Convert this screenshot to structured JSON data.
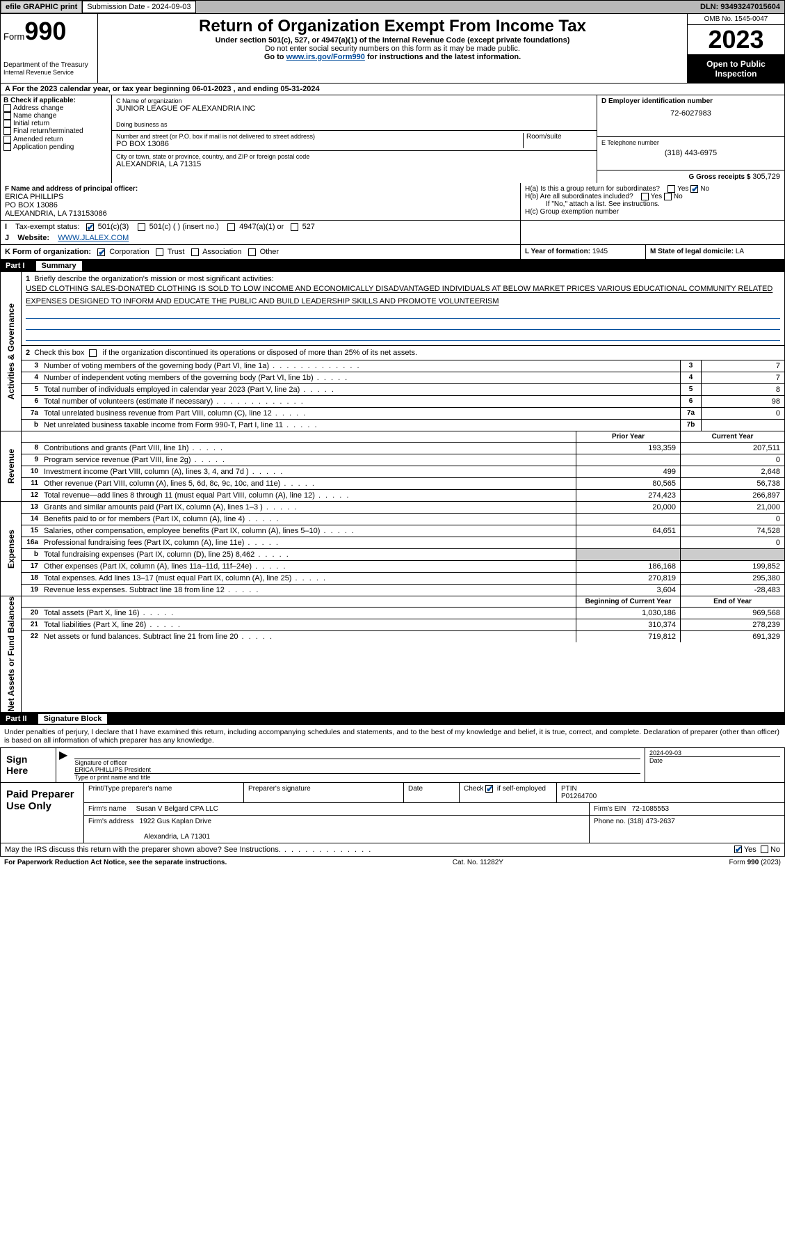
{
  "topbar": {
    "efile": "efile GRAPHIC print",
    "submission": "Submission Date - 2024-09-03",
    "dln": "DLN: 93493247015604"
  },
  "header": {
    "form_prefix": "Form",
    "form_number": "990",
    "dept": "Department of the Treasury",
    "irs": "Internal Revenue Service",
    "title": "Return of Organization Exempt From Income Tax",
    "sub1": "Under section 501(c), 527, or 4947(a)(1) of the Internal Revenue Code (except private foundations)",
    "sub2": "Do not enter social security numbers on this form as it may be made public.",
    "sub3_pre": "Go to ",
    "sub3_link": "www.irs.gov/Form990",
    "sub3_post": " for instructions and the latest information.",
    "omb": "OMB No. 1545-0047",
    "year": "2023",
    "inspection": "Open to Public Inspection"
  },
  "taxyear": "A For the 2023 calendar year, or tax year beginning 06-01-2023    , and ending 05-31-2024",
  "box_b": {
    "label": "B Check if applicable:",
    "opts": [
      "Address change",
      "Name change",
      "Initial return",
      "Final return/terminated",
      "Amended return",
      "Application pending"
    ]
  },
  "box_c": {
    "name_label": "C Name of organization",
    "name": "JUNIOR LEAGUE OF ALEXANDRIA INC",
    "dba_label": "Doing business as",
    "addr_label": "Number and street (or P.O. box if mail is not delivered to street address)",
    "room_label": "Room/suite",
    "addr": "PO BOX 13086",
    "city_label": "City or town, state or province, country, and ZIP or foreign postal code",
    "city": "ALEXANDRIA, LA   71315"
  },
  "box_d": {
    "label": "D Employer identification number",
    "ein": "72-6027983"
  },
  "box_e": {
    "label": "E Telephone number",
    "phone": "(318) 443-6975"
  },
  "box_g": {
    "label": "G Gross receipts $ ",
    "val": "305,729"
  },
  "box_f": {
    "label": "F Name and address of principal officer:",
    "name": "ERICA PHILLIPS",
    "addr1": "PO BOX 13086",
    "addr2": "ALEXANDRIA, LA   713153086"
  },
  "box_h": {
    "a": "H(a)  Is this a group return for subordinates?",
    "b": "H(b)  Are all subordinates included?",
    "b_note": "If \"No,\" attach a list. See instructions.",
    "c": "H(c)  Group exemption number",
    "yes": "Yes",
    "no": "No"
  },
  "box_i": {
    "label": "Tax-exempt status:",
    "o1": "501(c)(3)",
    "o2": "501(c) (  ) (insert no.)",
    "o3": "4947(a)(1) or",
    "o4": "527"
  },
  "box_j": {
    "label": "Website:",
    "val": "WWW.JLALEX.COM"
  },
  "box_k": {
    "label": "K Form of organization:",
    "o1": "Corporation",
    "o2": "Trust",
    "o3": "Association",
    "o4": "Other"
  },
  "box_l": {
    "label": "L Year of formation: ",
    "val": "1945"
  },
  "box_m": {
    "label": "M State of legal domicile: ",
    "val": "LA"
  },
  "part1": {
    "label": "Part I",
    "title": "Summary"
  },
  "governance": {
    "label": "Activities & Governance",
    "l1_label": "Briefly describe the organization's mission or most significant activities:",
    "l1_text": "USED CLOTHING SALES-DONATED CLOTHING IS SOLD TO LOW INCOME AND ECONOMICALLY DISADVANTAGED INDIVIDUALS AT BELOW MARKET PRICES VARIOUS EDUCATIONAL COMMUNITY RELATED EXPENSES DESIGNED TO INFORM AND EDUCATE THE PUBLIC AND BUILD LEADERSHIP SKILLS AND PROMOTE VOLUNTEERISM",
    "l2": "Check this box        if the organization discontinued its operations or disposed of more than 25% of its net assets.",
    "l3": "Number of voting members of the governing body (Part VI, line 1a)",
    "l3v": "7",
    "l4": "Number of independent voting members of the governing body (Part VI, line 1b)",
    "l4v": "7",
    "l5": "Total number of individuals employed in calendar year 2023 (Part V, line 2a)",
    "l5v": "8",
    "l6": "Total number of volunteers (estimate if necessary)",
    "l6v": "98",
    "l7a": "Total unrelated business revenue from Part VIII, column (C), line 12",
    "l7av": "0",
    "l7b": "Net unrelated business taxable income from Form 990-T, Part I, line 11",
    "l7bv": ""
  },
  "revenue": {
    "label": "Revenue",
    "prior": "Prior Year",
    "current": "Current Year",
    "rows": [
      {
        "n": "8",
        "t": "Contributions and grants (Part VIII, line 1h)",
        "p": "193,359",
        "c": "207,511"
      },
      {
        "n": "9",
        "t": "Program service revenue (Part VIII, line 2g)",
        "p": "",
        "c": "0"
      },
      {
        "n": "10",
        "t": "Investment income (Part VIII, column (A), lines 3, 4, and 7d )",
        "p": "499",
        "c": "2,648"
      },
      {
        "n": "11",
        "t": "Other revenue (Part VIII, column (A), lines 5, 6d, 8c, 9c, 10c, and 11e)",
        "p": "80,565",
        "c": "56,738"
      },
      {
        "n": "12",
        "t": "Total revenue—add lines 8 through 11 (must equal Part VIII, column (A), line 12)",
        "p": "274,423",
        "c": "266,897"
      }
    ]
  },
  "expenses": {
    "label": "Expenses",
    "rows": [
      {
        "n": "13",
        "t": "Grants and similar amounts paid (Part IX, column (A), lines 1–3 )",
        "p": "20,000",
        "c": "21,000"
      },
      {
        "n": "14",
        "t": "Benefits paid to or for members (Part IX, column (A), line 4)",
        "p": "",
        "c": "0"
      },
      {
        "n": "15",
        "t": "Salaries, other compensation, employee benefits (Part IX, column (A), lines 5–10)",
        "p": "64,651",
        "c": "74,528"
      },
      {
        "n": "16a",
        "t": "Professional fundraising fees (Part IX, column (A), line 11e)",
        "p": "",
        "c": "0"
      },
      {
        "n": "b",
        "t": "Total fundraising expenses (Part IX, column (D), line 25) 8,462",
        "p": "SHADE",
        "c": "SHADE"
      },
      {
        "n": "17",
        "t": "Other expenses (Part IX, column (A), lines 11a–11d, 11f–24e)",
        "p": "186,168",
        "c": "199,852"
      },
      {
        "n": "18",
        "t": "Total expenses. Add lines 13–17 (must equal Part IX, column (A), line 25)",
        "p": "270,819",
        "c": "295,380"
      },
      {
        "n": "19",
        "t": "Revenue less expenses. Subtract line 18 from line 12",
        "p": "3,604",
        "c": "-28,483"
      }
    ]
  },
  "netassets": {
    "label": "Net Assets or Fund Balances",
    "begin": "Beginning of Current Year",
    "end": "End of Year",
    "rows": [
      {
        "n": "20",
        "t": "Total assets (Part X, line 16)",
        "p": "1,030,186",
        "c": "969,568"
      },
      {
        "n": "21",
        "t": "Total liabilities (Part X, line 26)",
        "p": "310,374",
        "c": "278,239"
      },
      {
        "n": "22",
        "t": "Net assets or fund balances. Subtract line 21 from line 20",
        "p": "719,812",
        "c": "691,329"
      }
    ]
  },
  "part2": {
    "label": "Part II",
    "title": "Signature Block"
  },
  "perjury": "Under penalties of perjury, I declare that I have examined this return, including accompanying schedules and statements, and to the best of my knowledge and belief, it is true, correct, and complete. Declaration of preparer (other than officer) is based on all information of which preparer has any knowledge.",
  "sign": {
    "left": "Sign Here",
    "sig_label": "Signature of officer",
    "name": "ERICA PHILLIPS  President",
    "name_label": "Type or print name and title",
    "date_label": "Date",
    "date": "2024-09-03"
  },
  "paid": {
    "left": "Paid Preparer Use Only",
    "h1": "Print/Type preparer's name",
    "h2": "Preparer's signature",
    "h3": "Date",
    "h4_a": "Check",
    "h4_b": "if self-employed",
    "h5": "PTIN",
    "ptin": "P01264700",
    "firm_label": "Firm's name",
    "firm": "Susan V Belgard CPA LLC",
    "firm_ein_label": "Firm's EIN",
    "firm_ein": "72-1085553",
    "addr_label": "Firm's address",
    "addr1": "1922 Gus Kaplan Drive",
    "addr2": "Alexandria, LA   71301",
    "phone_label": "Phone no.",
    "phone": "(318) 473-2637"
  },
  "discuss": {
    "text": "May the IRS discuss this return with the preparer shown above? See Instructions.",
    "yes": "Yes",
    "no": "No"
  },
  "footer": {
    "left": "For Paperwork Reduction Act Notice, see the separate instructions.",
    "mid": "Cat. No. 11282Y",
    "right": "Form 990 (2023)"
  }
}
